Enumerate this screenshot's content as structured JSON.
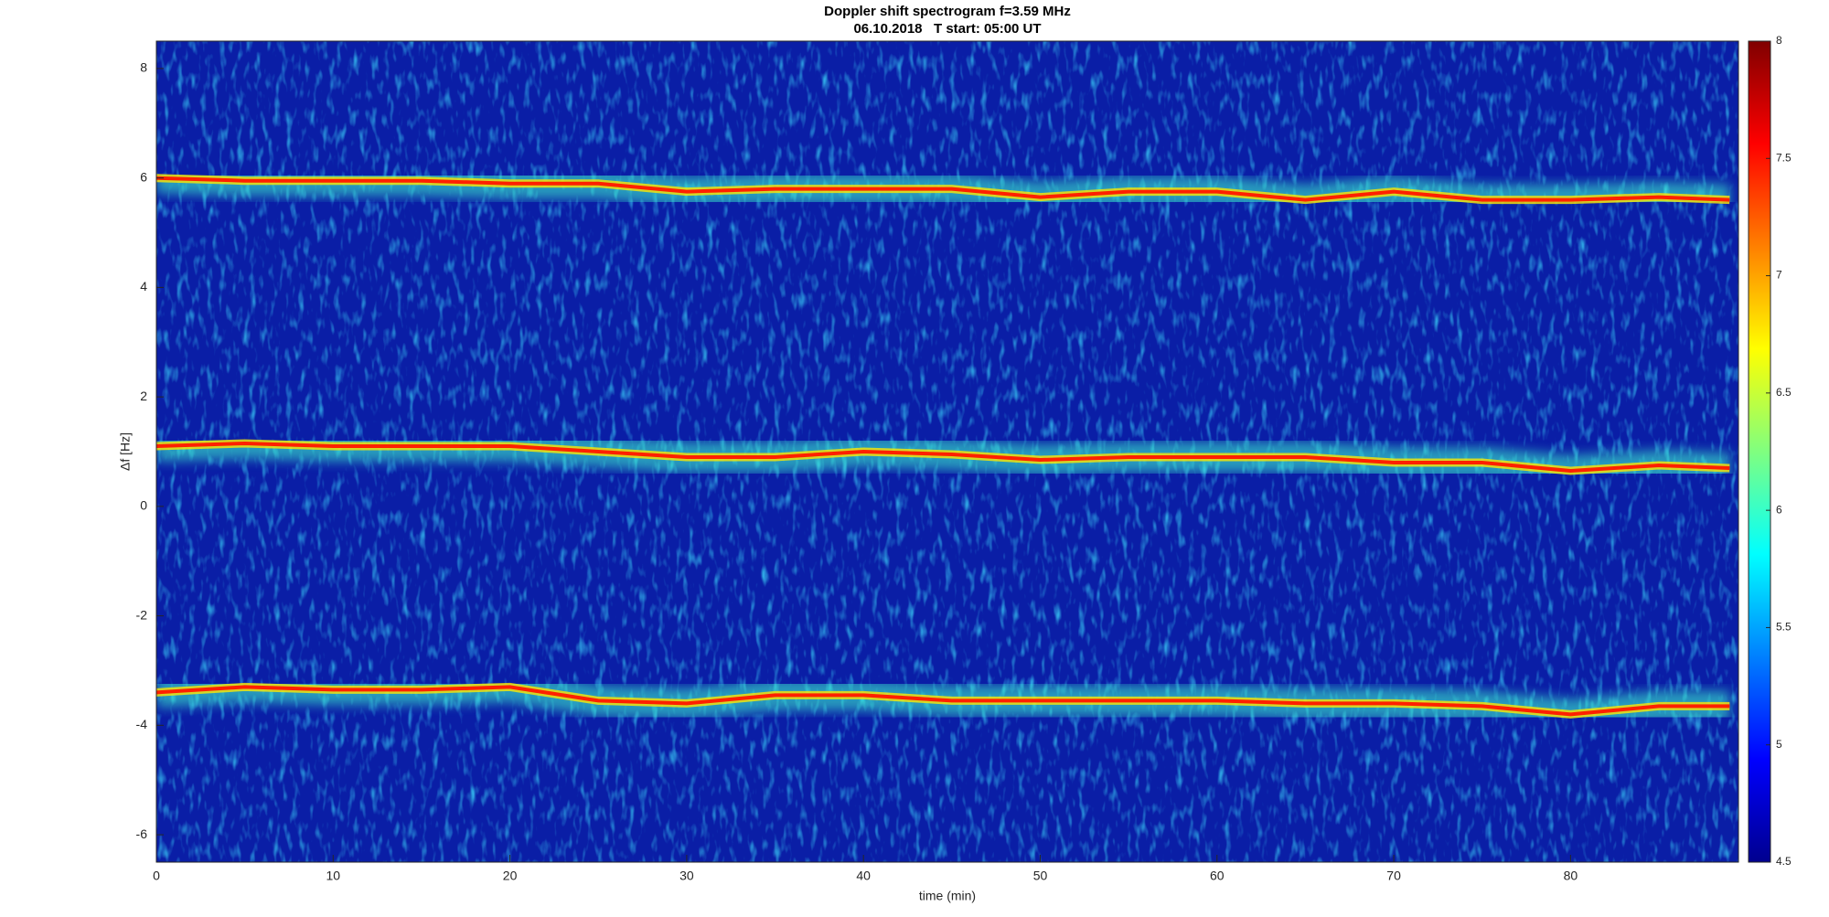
{
  "chart_data": {
    "type": "spectrogram",
    "title": "Doppler shift spectrogram f=3.59 MHz",
    "subtitle": "06.10.2018   T start: 05:00 UT",
    "x_label": "time (min)",
    "y_label": "Δf [Hz]",
    "xlim": [
      0,
      89.5
    ],
    "xticks": [
      0,
      10,
      20,
      30,
      40,
      50,
      60,
      70,
      80
    ],
    "ylim": [
      -6.5,
      8.5
    ],
    "yticks": [
      -6,
      -4,
      -2,
      0,
      2,
      4,
      6,
      8
    ],
    "clim": [
      4.5,
      8
    ],
    "cticks": [
      4.5,
      5,
      5.5,
      6,
      6.5,
      7,
      7.5,
      8
    ],
    "x": [
      0,
      5,
      10,
      15,
      20,
      25,
      30,
      35,
      40,
      45,
      50,
      55,
      60,
      65,
      70,
      75,
      80,
      85,
      89
    ],
    "series": [
      {
        "color": "#ff2000",
        "values": [
          6.0,
          5.95,
          5.95,
          5.95,
          5.9,
          5.9,
          5.75,
          5.8,
          5.8,
          5.8,
          5.65,
          5.75,
          5.75,
          5.6,
          5.75,
          5.6,
          5.6,
          5.65,
          5.6
        ]
      },
      {
        "color": "#ff2000",
        "values": [
          1.1,
          1.15,
          1.1,
          1.1,
          1.1,
          1.0,
          0.9,
          0.9,
          1.0,
          0.95,
          0.85,
          0.9,
          0.9,
          0.9,
          0.8,
          0.8,
          0.65,
          0.75,
          0.7
        ]
      },
      {
        "color": "#ff2000",
        "values": [
          -3.4,
          -3.3,
          -3.35,
          -3.35,
          -3.3,
          -3.55,
          -3.6,
          -3.45,
          -3.45,
          -3.55,
          -3.55,
          -3.55,
          -3.55,
          -3.6,
          -3.6,
          -3.65,
          -3.8,
          -3.65,
          -3.65
        ]
      }
    ]
  }
}
